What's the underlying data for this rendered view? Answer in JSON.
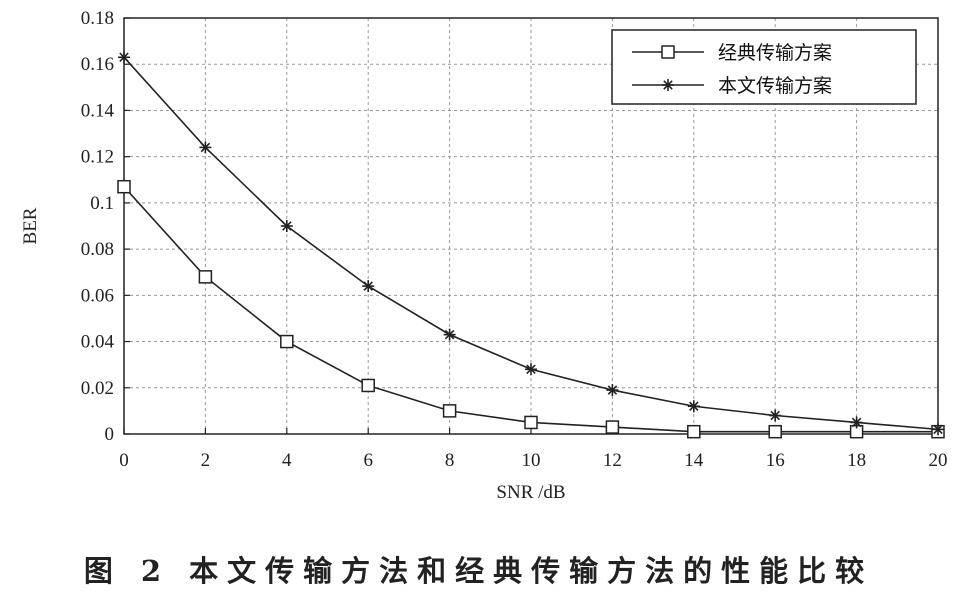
{
  "chart_data": {
    "type": "line",
    "xlabel": "SNR /dB",
    "ylabel": "BER",
    "xlim": [
      0,
      20
    ],
    "ylim": [
      0,
      0.18
    ],
    "x_ticks": [
      "0",
      "2",
      "4",
      "6",
      "8",
      "10",
      "12",
      "14",
      "16",
      "18",
      "20"
    ],
    "y_ticks": [
      "0",
      "0.02",
      "0.04",
      "0.06",
      "0.08",
      "0.1",
      "0.12",
      "0.14",
      "0.16",
      "0.18"
    ],
    "grid": true,
    "legend_position": "top-right",
    "x": [
      0,
      2,
      4,
      6,
      8,
      10,
      12,
      14,
      16,
      18,
      20
    ],
    "series": [
      {
        "name": "经典传输方案",
        "marker": "square",
        "values": [
          0.107,
          0.068,
          0.04,
          0.021,
          0.01,
          0.005,
          0.003,
          0.001,
          0.001,
          0.001,
          0.001
        ]
      },
      {
        "name": "本文传输方案",
        "marker": "star",
        "values": [
          0.163,
          0.124,
          0.09,
          0.064,
          0.043,
          0.028,
          0.019,
          0.012,
          0.008,
          0.005,
          0.002
        ]
      }
    ],
    "caption": "图 2  本文传输方法和经典传输方法的性能比较"
  },
  "colors": {
    "line": "#222222",
    "grid": "#9a9a9a",
    "background": "#ffffff"
  }
}
